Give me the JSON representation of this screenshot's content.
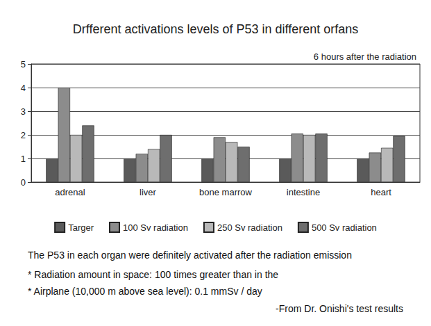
{
  "chart_data": {
    "type": "bar",
    "title": "Drfferent activations levels of P53 in different orfans",
    "subtitle": "6 hours after the radiation",
    "categories": [
      "adrenal",
      "liver",
      "bone marrow",
      "intestine",
      "heart"
    ],
    "series": [
      {
        "name": "Targer",
        "color": "#5a5a5a",
        "values": [
          1,
          1,
          1,
          1,
          1
        ]
      },
      {
        "name": "100 Sv radiation",
        "color": "#8c8c8c",
        "values": [
          4,
          1.2,
          1.9,
          2.05,
          1.25
        ]
      },
      {
        "name": "250 Sv radiation",
        "color": "#b9b9b9",
        "values": [
          2,
          1.4,
          1.7,
          2,
          1.45
        ]
      },
      {
        "name": "500 Sv radiation",
        "color": "#6e6e6e",
        "values": [
          2.4,
          2,
          1.5,
          2.05,
          1.95
        ]
      }
    ],
    "ylim": [
      0,
      5
    ],
    "yticks": [
      0,
      1,
      2,
      3,
      4,
      5
    ],
    "grid": true,
    "legend": "bottom",
    "annotations": [
      "The P53 in each organ were definitely activated after the radiation emission",
      "* Radiation amount in space: 100 times greater than in the",
      "* Airplane (10,000 m above sea level): 0.1 mmSv / day",
      "-From Dr. Onishi's test results"
    ]
  }
}
